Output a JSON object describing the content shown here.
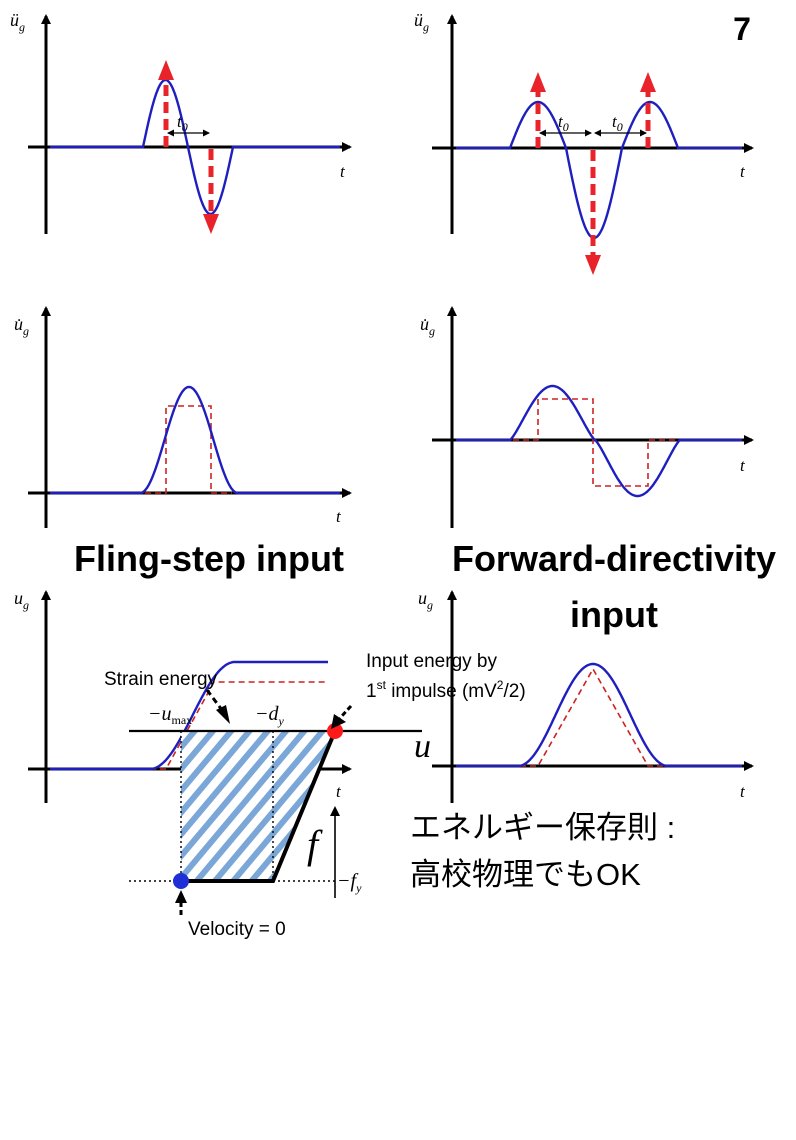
{
  "slide": {
    "page_number": "7"
  },
  "rows": {
    "accel": {
      "y_label": "ü",
      "y_sub": "g",
      "x_label": "t",
      "t0": "t",
      "t0_sub": "0"
    },
    "vel": {
      "y_label": "u̇",
      "y_sub": "g",
      "x_label": "t"
    },
    "disp": {
      "y_label": "u",
      "y_sub": "g",
      "x_label": "t"
    }
  },
  "captions": {
    "fling": "Fling-step input",
    "forward_line1": "Forward-directivity",
    "forward_line2": "input"
  },
  "energy_diagram": {
    "f_axis": "f",
    "u_axis": "u",
    "u_max_label": "−u",
    "u_max_sub": "max",
    "d_y_label": "−d",
    "d_y_sub": "y",
    "f_y_label": "−f",
    "f_y_sub": "y",
    "strain_energy": "Strain energy",
    "input_energy_line1": "Input energy by",
    "input_energy_line2_pre": "1",
    "input_energy_sup": "st",
    "input_energy_line2_post": " impulse  (mV",
    "input_energy_sup2": "2",
    "input_energy_tail": "/2)",
    "velocity_zero": "Velocity = 0"
  },
  "notes": {
    "line1": "エネルギー保存則 :",
    "line2": "高校物理でもOK"
  },
  "colors": {
    "axis": "#000000",
    "blue_curve": "#1f1fbf",
    "red_dashed": "#cc2222",
    "arrow_red": "#e8232a",
    "hatch_blue": "#7aa6d8",
    "dot_red": "#ff1a1a",
    "dot_blue": "#1f2fd6"
  }
}
